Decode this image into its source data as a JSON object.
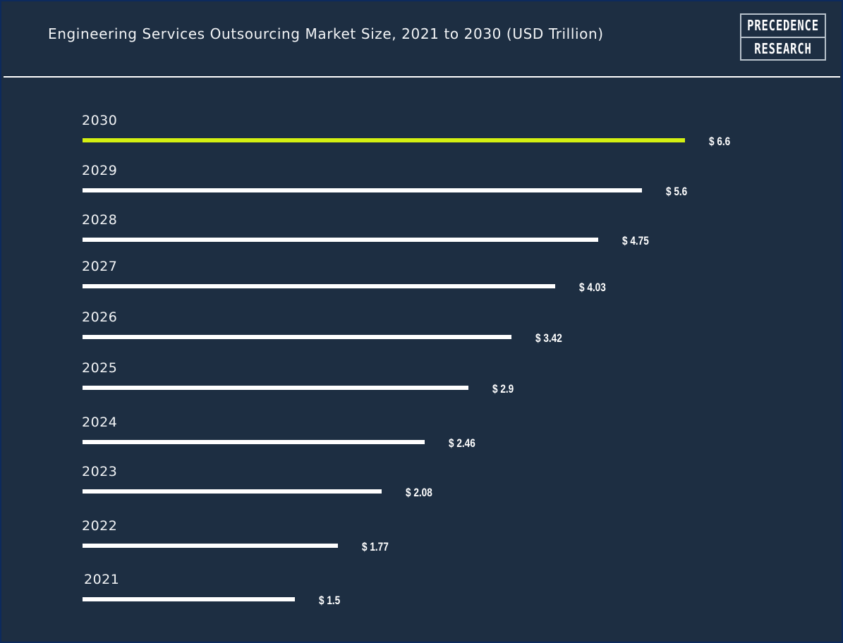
{
  "header": {
    "title": "Engineering Services Outsourcing Market Size, 2021 to 2030 (USD Trillion)",
    "logo": {
      "line1": "PRECEDENCE",
      "line2": "RESEARCH"
    }
  },
  "colors": {
    "background": "#1d2e42",
    "border": "#0d2a5c",
    "bar": "#ffffff",
    "highlight_bar": "#d4f012",
    "text": "#f2f4f6"
  },
  "chart_data": {
    "type": "bar",
    "orientation": "horizontal",
    "title": "Engineering Services Outsourcing Market Size, 2021 to 2030 (USD Trillion)",
    "xlabel": "",
    "ylabel": "",
    "grid": false,
    "categories": [
      "2030",
      "2029",
      "2028",
      "2027",
      "2026",
      "2025",
      "2024",
      "2023",
      "2022",
      "2021"
    ],
    "values": [
      6.6,
      5.6,
      4.75,
      4.03,
      3.42,
      2.9,
      2.46,
      2.08,
      1.77,
      1.5
    ],
    "value_labels": [
      "$ 6.6",
      "$ 5.6",
      "$ 4.75",
      "$ 4.03",
      "$ 3.42",
      "$ 2.9",
      "$ 2.46",
      "$ 2.08",
      "$ 1.77",
      "$ 1.5"
    ],
    "highlight_category": "2030",
    "unit": "USD Trillion"
  }
}
